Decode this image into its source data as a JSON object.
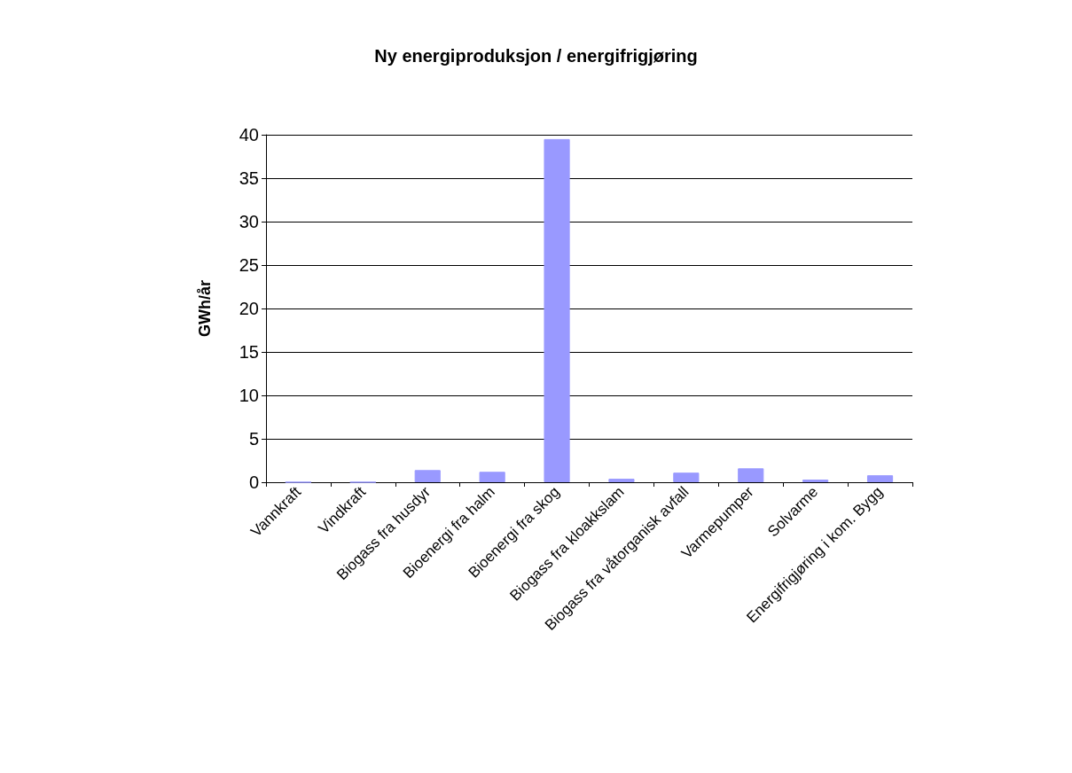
{
  "chart_data": {
    "type": "bar",
    "title": "Ny energiproduksjon / energifrigjøring",
    "ylabel": "GWh/år",
    "categories": [
      "Vannkraft",
      "Vindkraft",
      "Biogass fra husdyr",
      "Bioenergi fra halm",
      "Bioenergi fra skog",
      "Biogass fra kloakkslam",
      "Biogass fra våtorganisk avfall",
      "Varmepumper",
      "Solvarme",
      "Energifrigjøring i kom. Bygg"
    ],
    "values": [
      0,
      0,
      1.4,
      1.2,
      39.5,
      0.4,
      1.1,
      1.6,
      0.3,
      0.8
    ],
    "color": "#9999ff",
    "ylim": [
      0,
      40
    ],
    "yticks": [
      0,
      5,
      10,
      15,
      20,
      25,
      30,
      35,
      40
    ],
    "grid": "y"
  }
}
